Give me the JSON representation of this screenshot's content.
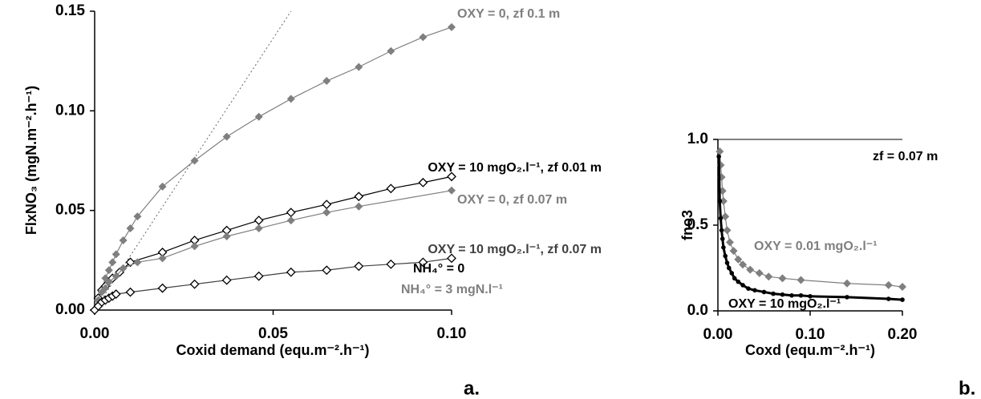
{
  "chart_data": [
    {
      "type": "line",
      "x_label": "Coxid demand (equ.m⁻².h⁻¹)",
      "y_label": "FlxNO₃ (mgN.m⁻².h⁻¹)",
      "panel_label": "a.",
      "xlim": [
        0,
        0.1
      ],
      "ylim": [
        0,
        0.15
      ],
      "xticks": [
        {
          "value": 0,
          "label": "0.00"
        },
        {
          "value": 0.05,
          "label": "0.05"
        },
        {
          "value": 0.1,
          "label": "0.10"
        }
      ],
      "yticks": [
        {
          "value": 0,
          "label": "0.00"
        },
        {
          "value": 0.05,
          "label": "0.05"
        },
        {
          "value": 0.1,
          "label": "0.10"
        },
        {
          "value": 0.15,
          "label": "0.15"
        }
      ],
      "reference_line": {
        "x": [
          0,
          0.055
        ],
        "y": [
          0,
          0.15
        ]
      },
      "series": [
        {
          "name": "OXY = 0, zf 0.1 m",
          "color": "#7f7f7f",
          "marker": "diamond",
          "x": [
            0.001,
            0.002,
            0.003,
            0.004,
            0.005,
            0.006,
            0.008,
            0.01,
            0.012,
            0.019,
            0.028,
            0.037,
            0.046,
            0.055,
            0.065,
            0.074,
            0.083,
            0.092,
            0.1
          ],
          "values": [
            0.005,
            0.01,
            0.016,
            0.02,
            0.024,
            0.028,
            0.035,
            0.041,
            0.047,
            0.062,
            0.075,
            0.087,
            0.097,
            0.106,
            0.115,
            0.122,
            0.13,
            0.137,
            0.142
          ]
        },
        {
          "name": "OXY = 10 mgO₂.l⁻¹, zf 0.01 m",
          "color": "#000000",
          "marker": "open-diamond",
          "x": [
            0,
            0.001,
            0.002,
            0.003,
            0.005,
            0.007,
            0.01,
            0.019,
            0.028,
            0.037,
            0.046,
            0.055,
            0.065,
            0.074,
            0.083,
            0.092,
            0.1
          ],
          "values": [
            0,
            0.006,
            0.01,
            0.012,
            0.016,
            0.019,
            0.024,
            0.029,
            0.035,
            0.04,
            0.045,
            0.049,
            0.053,
            0.057,
            0.061,
            0.064,
            0.067
          ]
        },
        {
          "name": "OXY = 0, zf 0.07 m",
          "color": "#7f7f7f",
          "marker": "diamond",
          "x": [
            0.001,
            0.002,
            0.003,
            0.004,
            0.006,
            0.008,
            0.012,
            0.019,
            0.028,
            0.037,
            0.046,
            0.055,
            0.065,
            0.074,
            0.1
          ],
          "values": [
            0.005,
            0.009,
            0.011,
            0.014,
            0.017,
            0.021,
            0.024,
            0.026,
            0.032,
            0.037,
            0.041,
            0.045,
            0.049,
            0.052,
            0.06
          ]
        },
        {
          "name": "OXY = 10 mgO₂.l⁻¹, zf 0.07 m",
          "color": "#404040",
          "marker": "open-diamond",
          "x": [
            0.001,
            0.002,
            0.003,
            0.004,
            0.005,
            0.006,
            0.01,
            0.019,
            0.028,
            0.037,
            0.046,
            0.055,
            0.065,
            0.074,
            0.083,
            0.092,
            0.1
          ],
          "values": [
            0.002,
            0.004,
            0.005,
            0.006,
            0.007,
            0.008,
            0.009,
            0.011,
            0.013,
            0.015,
            0.017,
            0.019,
            0.02,
            0.022,
            0.023,
            0.024,
            0.026
          ]
        }
      ],
      "annotations": [
        {
          "text": "NH₄° = 0",
          "color": "#000000"
        },
        {
          "text": "NH₄° = 3 mgN.l⁻¹",
          "color": "#7f7f7f"
        }
      ]
    },
    {
      "type": "line",
      "x_label": "Coxd (equ.m⁻².h⁻¹)",
      "y_label": "fno3",
      "panel_label": "b.",
      "xlim": [
        0,
        0.2
      ],
      "ylim": [
        0,
        1
      ],
      "xticks": [
        {
          "value": 0,
          "label": "0.00"
        },
        {
          "value": 0.1,
          "label": "0.10"
        },
        {
          "value": 0.2,
          "label": "0.20"
        }
      ],
      "yticks": [
        {
          "value": 0,
          "label": "0.0"
        },
        {
          "value": 0.5,
          "label": "0.5"
        },
        {
          "value": 1,
          "label": "1.0"
        }
      ],
      "series": [
        {
          "name": "OXY = 0.01 mgO₂.l⁻¹",
          "color": "#7f7f7f",
          "marker": "diamond",
          "x": [
            0.002,
            0.003,
            0.004,
            0.005,
            0.006,
            0.008,
            0.01,
            0.013,
            0.017,
            0.022,
            0.027,
            0.035,
            0.045,
            0.055,
            0.07,
            0.09,
            0.14,
            0.185,
            0.2
          ],
          "values": [
            0.93,
            0.85,
            0.78,
            0.7,
            0.64,
            0.55,
            0.47,
            0.4,
            0.35,
            0.3,
            0.27,
            0.24,
            0.22,
            0.2,
            0.19,
            0.18,
            0.16,
            0.15,
            0.14
          ]
        },
        {
          "name": "OXY = 10 mgO₂.l⁻¹",
          "color": "#000000",
          "marker": "dot",
          "x": [
            0.001,
            0.002,
            0.003,
            0.004,
            0.005,
            0.006,
            0.008,
            0.01,
            0.012,
            0.015,
            0.018,
            0.022,
            0.027,
            0.033,
            0.04,
            0.05,
            0.06,
            0.07,
            0.08,
            0.09,
            0.1,
            0.14,
            0.185,
            0.2
          ],
          "values": [
            0.9,
            0.64,
            0.54,
            0.47,
            0.42,
            0.37,
            0.32,
            0.28,
            0.25,
            0.22,
            0.19,
            0.17,
            0.15,
            0.13,
            0.12,
            0.11,
            0.1,
            0.095,
            0.09,
            0.09,
            0.085,
            0.08,
            0.07,
            0.065
          ]
        }
      ],
      "annotations": [
        {
          "text": "zf = 0.07 m",
          "color": "#000000"
        }
      ]
    }
  ]
}
